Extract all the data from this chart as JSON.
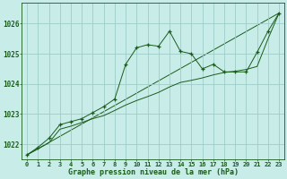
{
  "title": "Graphe pression niveau de la mer (hPa)",
  "background_color": "#c8ece8",
  "plot_bg_color": "#c8ece8",
  "grid_color": "#9dccc6",
  "line_color": "#1a5c1a",
  "marker_color": "#1a5c1a",
  "xlim": [
    -0.5,
    23.5
  ],
  "ylim": [
    1021.5,
    1026.7
  ],
  "yticks": [
    1022,
    1023,
    1024,
    1025,
    1026
  ],
  "xtick_labels": [
    "0",
    "1",
    "2",
    "3",
    "4",
    "5",
    "6",
    "7",
    "8",
    "9",
    "10",
    "11",
    "12",
    "13",
    "14",
    "15",
    "16",
    "17",
    "18",
    "19",
    "20",
    "21",
    "22",
    "23"
  ],
  "series1_x": [
    0,
    1,
    2,
    3,
    4,
    5,
    6,
    7,
    8,
    9,
    10,
    11,
    12,
    13,
    14,
    15,
    16,
    17,
    18,
    19,
    20,
    21,
    22,
    23
  ],
  "series1_y": [
    1021.65,
    1021.9,
    1022.2,
    1022.65,
    1022.75,
    1022.85,
    1023.05,
    1023.25,
    1023.5,
    1024.65,
    1025.2,
    1025.3,
    1025.25,
    1025.75,
    1025.08,
    1025.0,
    1024.5,
    1024.65,
    1024.4,
    1024.4,
    1024.4,
    1025.05,
    1025.75,
    1026.35
  ],
  "series2_x": [
    0,
    1,
    2,
    3,
    4,
    5,
    6,
    7,
    8,
    9,
    10,
    11,
    12,
    13,
    14,
    15,
    16,
    17,
    18,
    19,
    20,
    21,
    22,
    23
  ],
  "series2_y": [
    1021.65,
    1021.85,
    1022.05,
    1022.5,
    1022.6,
    1022.72,
    1022.85,
    1022.95,
    1023.12,
    1023.3,
    1023.45,
    1023.58,
    1023.72,
    1023.9,
    1024.05,
    1024.12,
    1024.2,
    1024.3,
    1024.38,
    1024.42,
    1024.48,
    1024.58,
    1025.5,
    1026.35
  ],
  "series3_x": [
    0,
    23
  ],
  "series3_y": [
    1021.65,
    1026.35
  ]
}
